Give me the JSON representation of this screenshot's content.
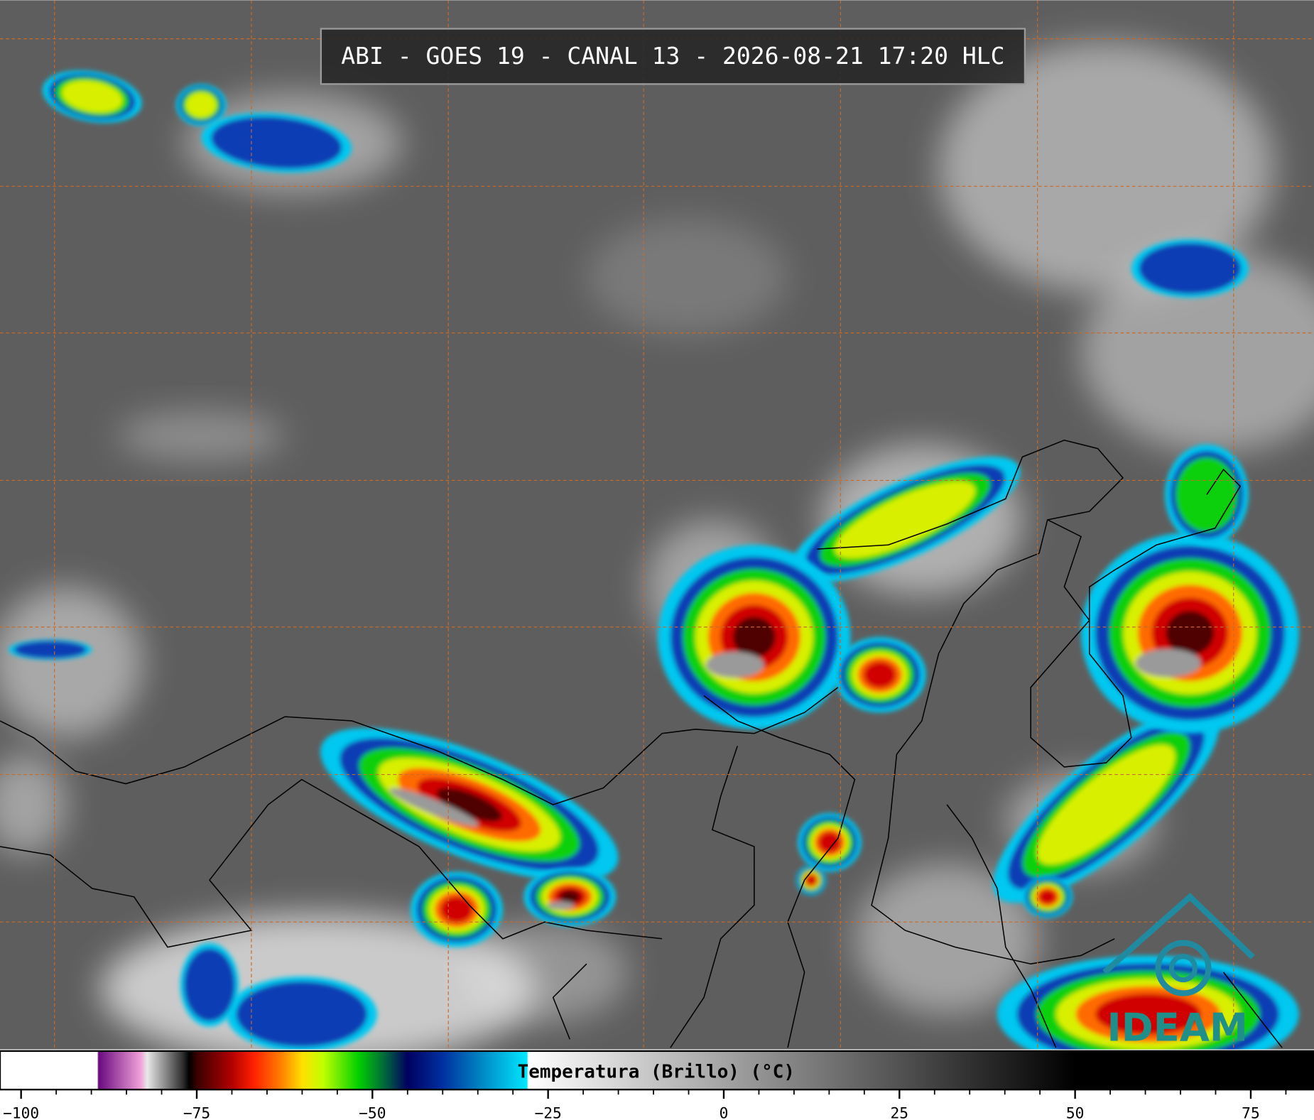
{
  "title": "ABI - GOES 19 - CANAL 13 - 2026-08-21 17:20 HLC",
  "colorbar": {
    "label": "Temperatura (Brillo) (°C)",
    "xlim": [
      -103,
      84
    ],
    "xticks": [
      {
        "value": -100,
        "label": "−100"
      },
      {
        "value": -75,
        "label": "−75"
      },
      {
        "value": -50,
        "label": "−50"
      },
      {
        "value": -25,
        "label": "−25"
      },
      0,
      25,
      50,
      75
    ],
    "minor_ticks": [
      -100,
      -95,
      -90,
      -85,
      -80,
      -75,
      -70,
      -65,
      -60,
      -55,
      -50,
      -45,
      -40,
      -35,
      -30,
      -25,
      -20,
      -15,
      -10,
      -5,
      0,
      5,
      10,
      15,
      20,
      25,
      30,
      35,
      40,
      45,
      50,
      55,
      60,
      65,
      70,
      75,
      80
    ]
  },
  "logo": "IDEAM"
}
